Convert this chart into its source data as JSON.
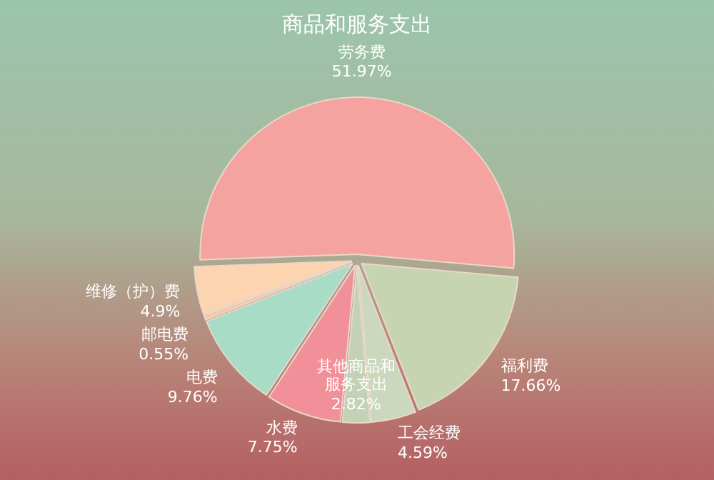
{
  "chart_data": {
    "type": "pie",
    "title": "商品和服务支出",
    "categories": [
      "劳务费",
      "福利费",
      "工会经费",
      "其他商品和服务支出",
      "水费",
      "电费",
      "邮电费",
      "维修（护）费"
    ],
    "values": [
      51.97,
      17.66,
      4.59,
      2.82,
      7.75,
      9.76,
      0.55,
      4.9
    ],
    "colors": [
      "#f5a3a0",
      "#c6d4b2",
      "#ccd8bd",
      "#c3d2b5",
      "#f2909a",
      "#a8dcc6",
      "#f3c9a9",
      "#fdd4b0"
    ],
    "value_labels": [
      "51.97%",
      "17.66%",
      "4.59%",
      "2.82%",
      "7.75%",
      "9.76%",
      "0.55%",
      "4.9%"
    ]
  }
}
